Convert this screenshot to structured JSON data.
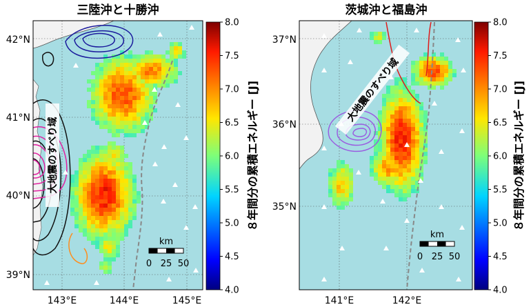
{
  "maps": [
    {
      "title": "三陸沖と十勝沖",
      "lat_ticks": [
        "42°N",
        "41°N",
        "40°N",
        "39°N"
      ],
      "lon_ticks": [
        "143°E",
        "144°E",
        "145°E"
      ],
      "slip_label": "大地震のすべり域",
      "scalebar": {
        "unit": "km",
        "ticks": [
          "0",
          "25",
          "50"
        ]
      }
    },
    {
      "title": "茨城沖と福島沖",
      "lat_ticks": [
        "37°N",
        "36°N",
        "35°N"
      ],
      "lon_ticks": [
        "141°E",
        "142°E"
      ],
      "slip_label": "大地震のすべり域",
      "scalebar": {
        "unit": "km",
        "ticks": [
          "0",
          "25",
          "50"
        ]
      }
    }
  ],
  "colorbars": [
    {
      "label": "８年間分の累積エネルギー [J]",
      "ticks": [
        "8.0",
        "7.5",
        "7.0",
        "6.5",
        "6.0",
        "5.5",
        "5.0",
        "4.5",
        "4.0"
      ]
    },
    {
      "label": "８年間分の累積エネルギー [J]",
      "ticks": [
        "8.0",
        "7.5",
        "7.0",
        "6.5",
        "6.0",
        "5.5",
        "5.0",
        "4.5",
        "4.0"
      ]
    }
  ],
  "colors": {
    "sea": "#a7dde3",
    "land": "#f2f2f2",
    "trench": "#888888",
    "slip_left": "#e020a0",
    "slip_right": "#9a5de0"
  }
}
